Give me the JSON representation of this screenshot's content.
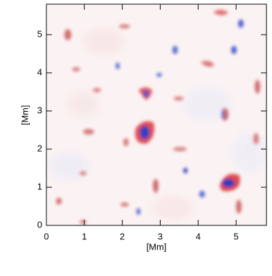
{
  "chart_data": {
    "type": "heatmap",
    "xlabel": "[Mm]",
    "ylabel": "[Mm]",
    "xlim": [
      0,
      5.8
    ],
    "ylim": [
      0,
      5.8
    ],
    "xticks": [
      0,
      1,
      2,
      3,
      4,
      5
    ],
    "yticks": [
      0,
      1,
      2,
      3,
      4,
      5
    ]
  }
}
